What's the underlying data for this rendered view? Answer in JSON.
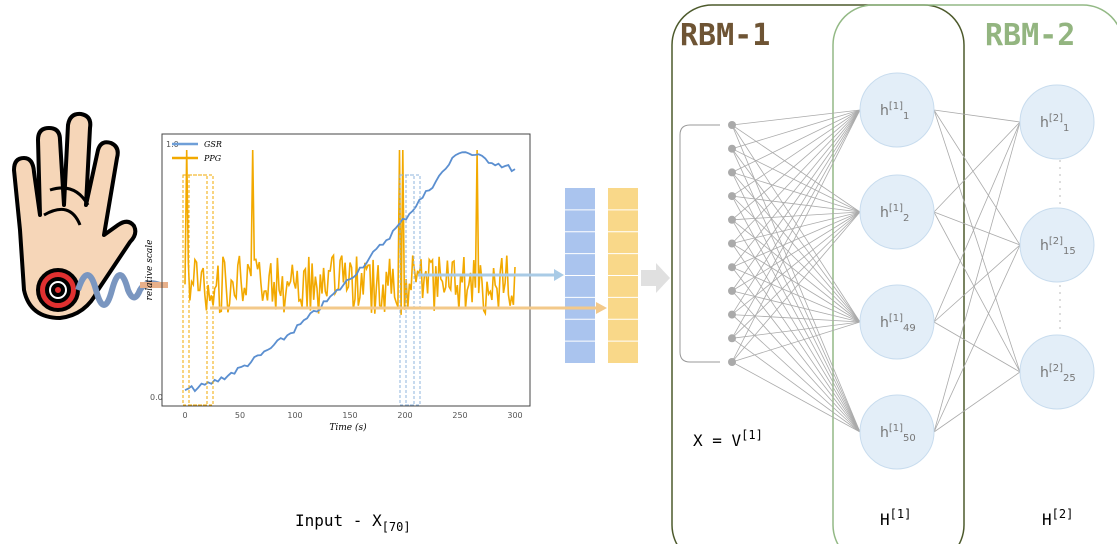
{
  "input_panel": {
    "plot": {
      "legend": [
        "GSR",
        "PPG"
      ],
      "y_axis_label": "relative scale",
      "x_axis_label": "Time (s)",
      "y_tick_labels": [
        "1.0",
        "0.0"
      ],
      "x_tick_labels": [
        "0",
        "50",
        "100",
        "150",
        "200",
        "250",
        "300"
      ]
    },
    "caption": {
      "text": "Input - X",
      "subscript": "[70]"
    }
  },
  "rbm_1": {
    "title": "RBM-1",
    "visible_label": {
      "text": "X = V",
      "superscript": "[1]"
    }
  },
  "rbm_2": {
    "title": "RBM-2"
  },
  "hidden_layer_1": {
    "label": {
      "text": "H",
      "superscript": "[1]"
    },
    "nodes": [
      {
        "base": "h",
        "superscript": "[1]",
        "subscript": "1"
      },
      {
        "base": "h",
        "superscript": "[1]",
        "subscript": "2"
      },
      {
        "base": "h",
        "superscript": "[1]",
        "subscript": "49"
      },
      {
        "base": "h",
        "superscript": "[1]",
        "subscript": "50"
      }
    ]
  },
  "hidden_layer_2": {
    "label": {
      "text": "H",
      "superscript": "[2]"
    },
    "nodes": [
      {
        "base": "h",
        "superscript": "[2]",
        "subscript": "1"
      },
      {
        "base": "h",
        "superscript": "[2]",
        "subscript": "15"
      },
      {
        "base": "h",
        "superscript": "[2]",
        "subscript": "25"
      }
    ]
  }
}
